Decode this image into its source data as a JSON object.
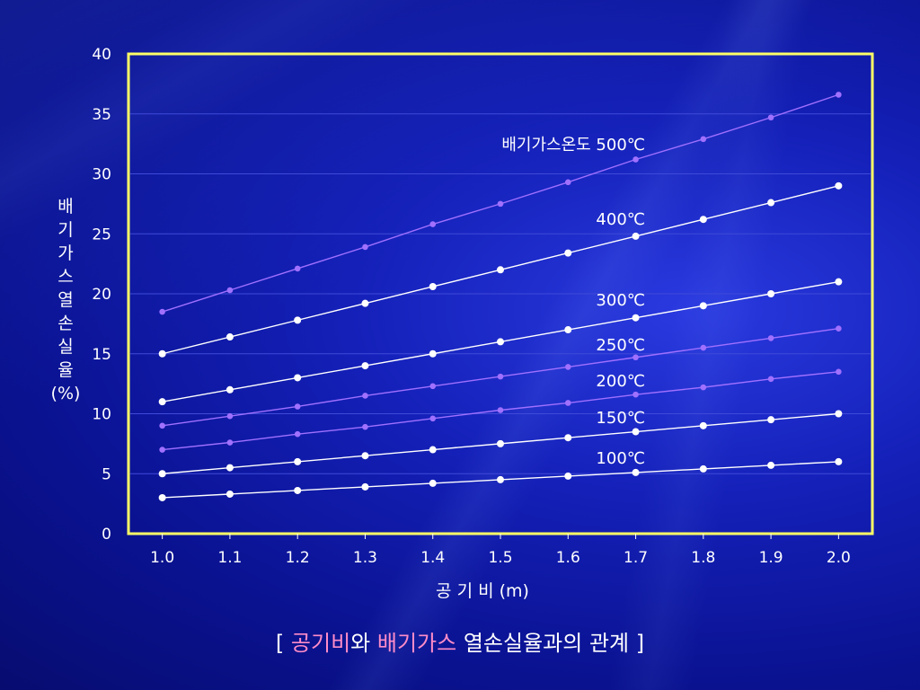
{
  "colors": {
    "frame": "#ffff66",
    "gridline": "#3f4ad8",
    "text": "#ffffff",
    "highlight": "#ff8cc8",
    "series_white": "#ffffff",
    "series_violet": "#a070ff"
  },
  "caption": {
    "open": "[ ",
    "part1": "공기비",
    "part2": "와 ",
    "part3": "배기가스",
    "part4": " 열손실율과의 관계 ]"
  },
  "chart_data": {
    "type": "line",
    "title": "",
    "xlabel": "공  기  비 (m)",
    "ylabel": "배기가스열손실율(%)",
    "ylabel_lines": [
      "배",
      "기",
      "가",
      "스",
      "열",
      "손",
      "실",
      "율",
      "(%)"
    ],
    "x": [
      1.0,
      1.1,
      1.2,
      1.3,
      1.4,
      1.5,
      1.6,
      1.7,
      1.8,
      1.9,
      2.0
    ],
    "x_tick_labels": [
      "1.0",
      "1.1",
      "1.2",
      "1.3",
      "1.4",
      "1.5",
      "1.6",
      "1.7",
      "1.8",
      "1.9",
      "2.0"
    ],
    "y_ticks": [
      0,
      5,
      10,
      15,
      20,
      25,
      30,
      35,
      40
    ],
    "xlim": [
      0.95,
      2.05
    ],
    "ylim": [
      0,
      40
    ],
    "grid": "horizontal",
    "series": [
      {
        "name": "배기가스온도 500℃",
        "color": "#a070ff",
        "values": [
          18.5,
          20.3,
          22.1,
          23.9,
          25.8,
          27.5,
          29.3,
          31.2,
          32.9,
          34.7,
          36.6
        ]
      },
      {
        "name": "400℃",
        "color": "#ffffff",
        "values": [
          15.0,
          16.4,
          17.8,
          19.2,
          20.6,
          22.0,
          23.4,
          24.8,
          26.2,
          27.6,
          29.0
        ]
      },
      {
        "name": "300℃",
        "color": "#ffffff",
        "values": [
          11.0,
          12.0,
          13.0,
          14.0,
          15.0,
          16.0,
          17.0,
          18.0,
          19.0,
          20.0,
          21.0
        ]
      },
      {
        "name": "250℃",
        "color": "#a070ff",
        "values": [
          9.0,
          9.8,
          10.6,
          11.5,
          12.3,
          13.1,
          13.9,
          14.7,
          15.5,
          16.3,
          17.1
        ]
      },
      {
        "name": "200℃",
        "color": "#a070ff",
        "values": [
          7.0,
          7.6,
          8.3,
          8.9,
          9.6,
          10.3,
          10.9,
          11.6,
          12.2,
          12.9,
          13.5
        ]
      },
      {
        "name": "150℃",
        "color": "#ffffff",
        "values": [
          5.0,
          5.5,
          6.0,
          6.5,
          7.0,
          7.5,
          8.0,
          8.5,
          9.0,
          9.5,
          10.0
        ]
      },
      {
        "name": "100℃",
        "color": "#ffffff",
        "values": [
          3.0,
          3.3,
          3.6,
          3.9,
          4.2,
          4.5,
          4.8,
          5.1,
          5.4,
          5.7,
          6.0
        ]
      }
    ]
  }
}
